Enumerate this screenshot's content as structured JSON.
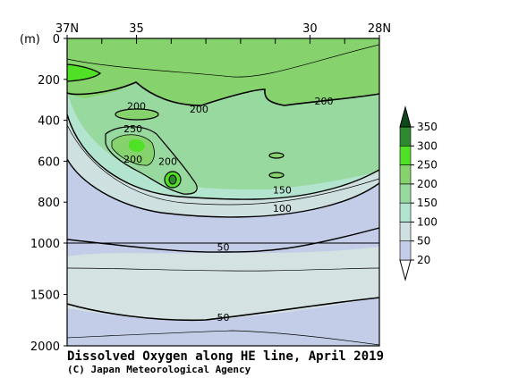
{
  "chart_data": {
    "type": "contour",
    "title": "Dissolved Oxygen along HE line, April 2019",
    "credit": "(C) Japan Meteorological Agency",
    "y_unit_label": "(m)",
    "x_ticks": [
      {
        "lat": 37,
        "label": "37N"
      },
      {
        "lat": 35,
        "label": "35"
      },
      {
        "lat": 30,
        "label": "30"
      },
      {
        "lat": 28,
        "label": "28N"
      }
    ],
    "x_minor_ticks": [
      37,
      36,
      35,
      34,
      33,
      32,
      31,
      30,
      29,
      28
    ],
    "xlim": [
      37,
      28
    ],
    "y_ticks": [
      {
        "depth": 0,
        "label": "0"
      },
      {
        "depth": 200,
        "label": "200"
      },
      {
        "depth": 400,
        "label": "400"
      },
      {
        "depth": 600,
        "label": "600"
      },
      {
        "depth": 800,
        "label": "800"
      },
      {
        "depth": 1000,
        "label": "1000"
      },
      {
        "depth": 1500,
        "label": "1500"
      },
      {
        "depth": 2000,
        "label": "2000"
      }
    ],
    "ylim": [
      0,
      2000
    ],
    "y_scale_break_depth": 1000,
    "colorbar": {
      "levels": [
        "20",
        "50",
        "100",
        "150",
        "200",
        "250",
        "300",
        "350"
      ],
      "colors": [
        "#ffffff",
        "#c3cde8",
        "#cfe0e0",
        "#b2e4cf",
        "#98d9a0",
        "#86d26c",
        "#50e025",
        "#2e8a2e",
        "#0f4a1a"
      ]
    },
    "contour_labels": [
      {
        "lat": 35.0,
        "depth": 330,
        "text": "200"
      },
      {
        "lat": 33.2,
        "depth": 345,
        "text": "200"
      },
      {
        "lat": 29.6,
        "depth": 305,
        "text": "200"
      },
      {
        "lat": 35.1,
        "depth": 440,
        "text": "250"
      },
      {
        "lat": 35.1,
        "depth": 590,
        "text": "200"
      },
      {
        "lat": 34.1,
        "depth": 600,
        "text": "200"
      },
      {
        "lat": 30.8,
        "depth": 740,
        "text": "150"
      },
      {
        "lat": 30.8,
        "depth": 830,
        "text": "100"
      },
      {
        "lat": 32.5,
        "depth": 1040,
        "text": "50"
      },
      {
        "lat": 32.5,
        "depth": 1720,
        "text": "50"
      }
    ],
    "grid": false
  }
}
